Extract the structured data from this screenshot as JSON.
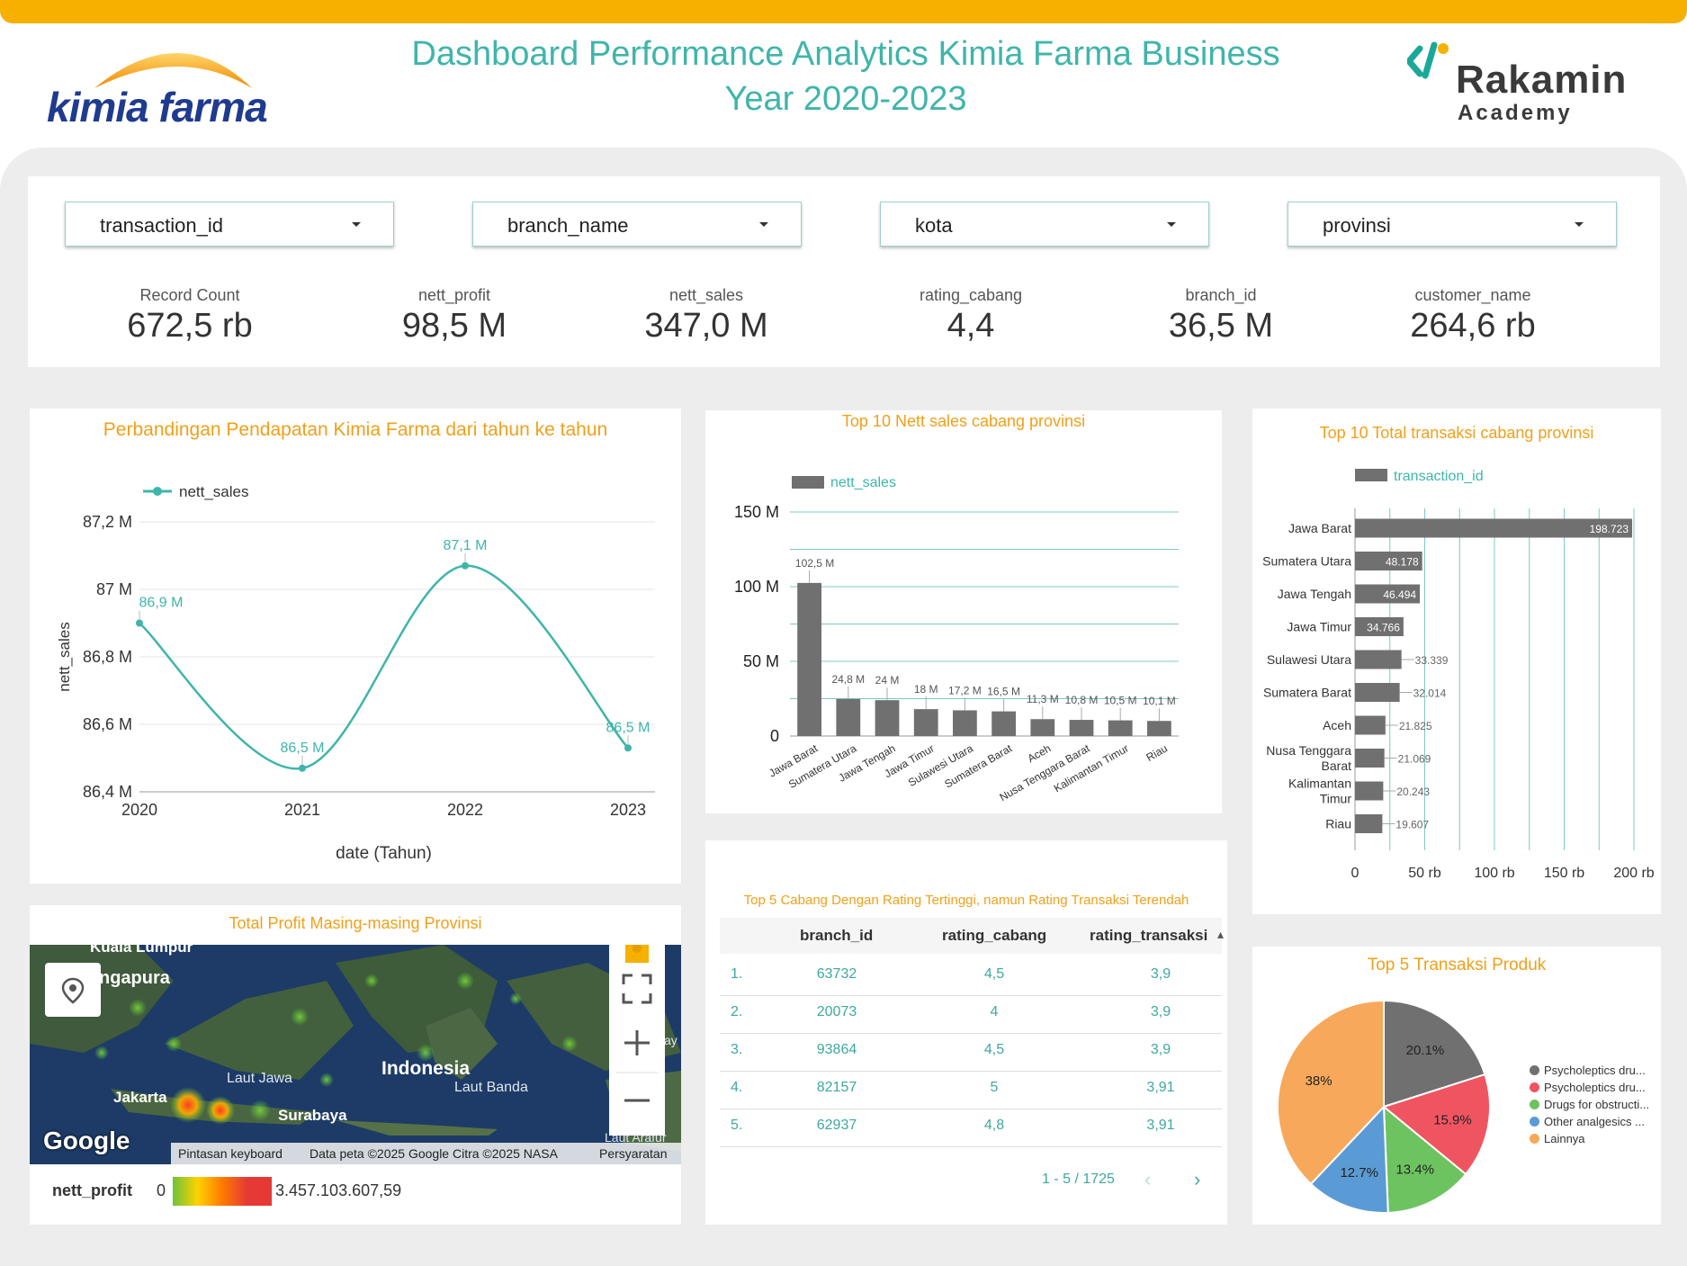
{
  "header": {
    "title_line1": "Dashboard Performance Analytics Kimia Farma Business",
    "title_line2": "Year 2020-2023",
    "logo_left": "kimia farma",
    "logo_right_main": "Rakamin",
    "logo_right_sub": "Academy"
  },
  "filters": [
    {
      "label": "transaction_id"
    },
    {
      "label": "branch_name"
    },
    {
      "label": "kota"
    },
    {
      "label": "provinsi"
    }
  ],
  "kpis": [
    {
      "label": "Record Count",
      "value": "672,5 rb"
    },
    {
      "label": "nett_profit",
      "value": "98,5 M"
    },
    {
      "label": "nett_sales",
      "value": "347,0 M"
    },
    {
      "label": "rating_cabang",
      "value": "4,4"
    },
    {
      "label": "branch_id",
      "value": "36,5 M"
    },
    {
      "label": "customer_name",
      "value": "264,6 rb"
    }
  ],
  "colors": {
    "accent": "#3fb5aa",
    "orange": "#f0a01a",
    "bar": "#707070",
    "topbar": "#f5b000"
  },
  "chart_data": [
    {
      "type": "line",
      "title": "Perbandingan Pendapatan Kimia Farma dari tahun ke tahun",
      "xlabel": "date (Tahun)",
      "ylabel": "nett_sales",
      "legend": "nett_sales",
      "legend_position": "top-left",
      "x": [
        "2020",
        "2021",
        "2022",
        "2023"
      ],
      "values": [
        86.9,
        86.47,
        87.07,
        86.53
      ],
      "data_labels": [
        "86,9 M",
        "86,5 M",
        "87,1 M",
        "86,5 M"
      ],
      "ylim": [
        86.4,
        87.2
      ],
      "yticks": [
        "86,4 M",
        "86,6 M",
        "86,8 M",
        "87 M",
        "87,2 M"
      ],
      "grid": true
    },
    {
      "type": "bar",
      "title": "Top 10 Nett sales cabang provinsi",
      "legend": "nett_sales",
      "legend_position": "top-left",
      "categories": [
        "Jawa Barat",
        "Sumatera Utara",
        "Jawa Tengah",
        "Jawa Timur",
        "Sulawesi Utara",
        "Sumatera Barat",
        "Aceh",
        "Nusa Tenggara Barat",
        "Kalimantan Timur",
        "Riau"
      ],
      "values": [
        102.5,
        24.8,
        24,
        18,
        17.2,
        16.5,
        11.3,
        10.8,
        10.5,
        10.1
      ],
      "data_labels": [
        "102,5 M",
        "24,8 M",
        "24 M",
        "18 M",
        "17,2 M",
        "16,5 M",
        "11,3 M",
        "10,8 M",
        "10,5 M",
        "10,1 M"
      ],
      "ylim": [
        0,
        150
      ],
      "yticks": [
        "0",
        "50 M",
        "100 M",
        "150 M"
      ],
      "grid": true
    },
    {
      "type": "bar",
      "orientation": "horizontal",
      "title": "Top 10 Total transaksi cabang provinsi",
      "legend": "transaction_id",
      "legend_position": "top-left",
      "categories": [
        "Jawa Barat",
        "Sumatera Utara",
        "Jawa Tengah",
        "Jawa Timur",
        "Sulawesi Utara",
        "Sumatera Barat",
        "Aceh",
        "Nusa Tenggara Barat",
        "Kalimantan Timur",
        "Riau"
      ],
      "values": [
        198723,
        48178,
        46494,
        34766,
        33339,
        32014,
        21825,
        21069,
        20243,
        19607
      ],
      "data_labels": [
        "198.723",
        "48.178",
        "46.494",
        "34.766",
        "33.339",
        "32.014",
        "21.825",
        "21.069",
        "20.243",
        "19.607"
      ],
      "xlim": [
        0,
        200000
      ],
      "xticks": [
        "0",
        "50 rb",
        "100 rb",
        "150 rb",
        "200 rb"
      ],
      "grid": true
    },
    {
      "type": "table",
      "title": "Top 5 Cabang Dengan Rating Tertinggi, namun Rating Transaksi Terendah",
      "columns": [
        "branch_id",
        "rating_cabang",
        "rating_transaksi"
      ],
      "rows": [
        {
          "no": "1.",
          "branch_id": "63732",
          "rating_cabang": "4,5",
          "rating_transaksi": "3,9"
        },
        {
          "no": "2.",
          "branch_id": "20073",
          "rating_cabang": "4",
          "rating_transaksi": "3,9"
        },
        {
          "no": "3.",
          "branch_id": "93864",
          "rating_cabang": "4,5",
          "rating_transaksi": "3,9"
        },
        {
          "no": "4.",
          "branch_id": "82157",
          "rating_cabang": "5",
          "rating_transaksi": "3,91"
        },
        {
          "no": "5.",
          "branch_id": "62937",
          "rating_cabang": "4,8",
          "rating_transaksi": "3,91"
        }
      ],
      "pagination": "1 - 5 / 1725"
    },
    {
      "type": "pie",
      "title": "Top 5 Transaksi Produk",
      "legend_position": "right",
      "slices": [
        {
          "name": "Psycholeptics dru...",
          "value": 20.1,
          "label": "20.1%",
          "color": "#707070"
        },
        {
          "name": "Psycholeptics dru...",
          "value": 15.9,
          "label": "15.9%",
          "color": "#ef5561"
        },
        {
          "name": "Drugs for obstructi...",
          "value": 13.4,
          "label": "13.4%",
          "color": "#6cc360"
        },
        {
          "name": "Other analgesics ...",
          "value": 12.7,
          "label": "12.7%",
          "color": "#5b9bd5"
        },
        {
          "name": "Lainnya",
          "value": 38,
          "label": "38%",
          "color": "#f7a85a"
        }
      ]
    }
  ],
  "map": {
    "title": "Total Profit Masing-masing Provinsi",
    "places": [
      "Kuala Lumpur",
      "ngapura",
      "Laut Jawa",
      "Indonesia",
      "Laut Banda",
      "Jakarta",
      "Surabaya",
      "Laut Arafur",
      "ay"
    ],
    "google_label": "Google",
    "footer_shortcuts": "Pintasan keyboard",
    "footer_data": "Data peta ©2025 Google Citra ©2025 NASA",
    "footer_terms": "Persyaratan",
    "legend_label": "nett_profit",
    "legend_min": "0",
    "legend_max": "3.457.103.607,59"
  }
}
